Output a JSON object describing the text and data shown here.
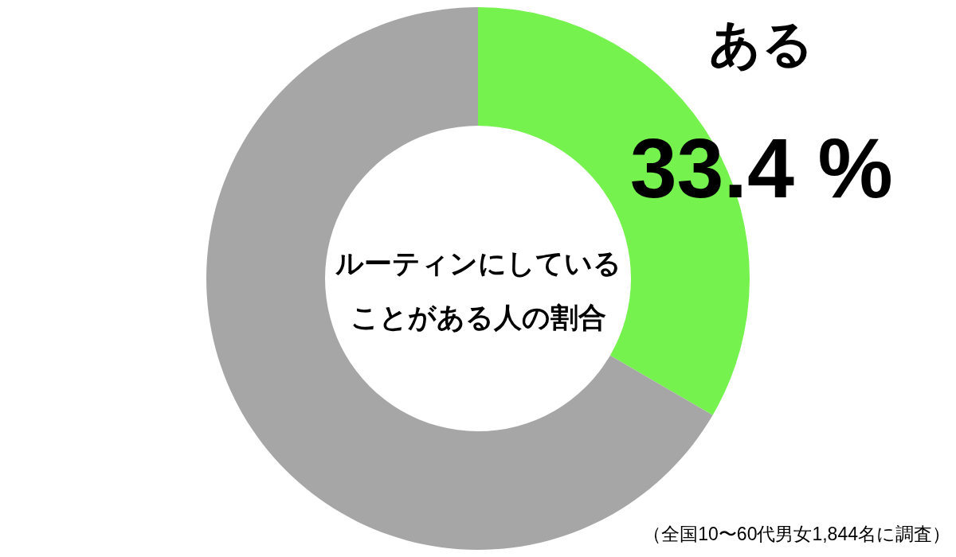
{
  "chart_data": {
    "type": "donut",
    "title": "ルーティンにしていることがある人の割合",
    "categories": [
      "ある",
      null
    ],
    "values": [
      33.4,
      66.6
    ],
    "colors": [
      "#76f24e",
      "#a6a6a6"
    ],
    "value_labels": [
      "33.4 %",
      null
    ],
    "annotations": [
      "（全国10〜60代男女1,844名に調査）"
    ]
  }
}
